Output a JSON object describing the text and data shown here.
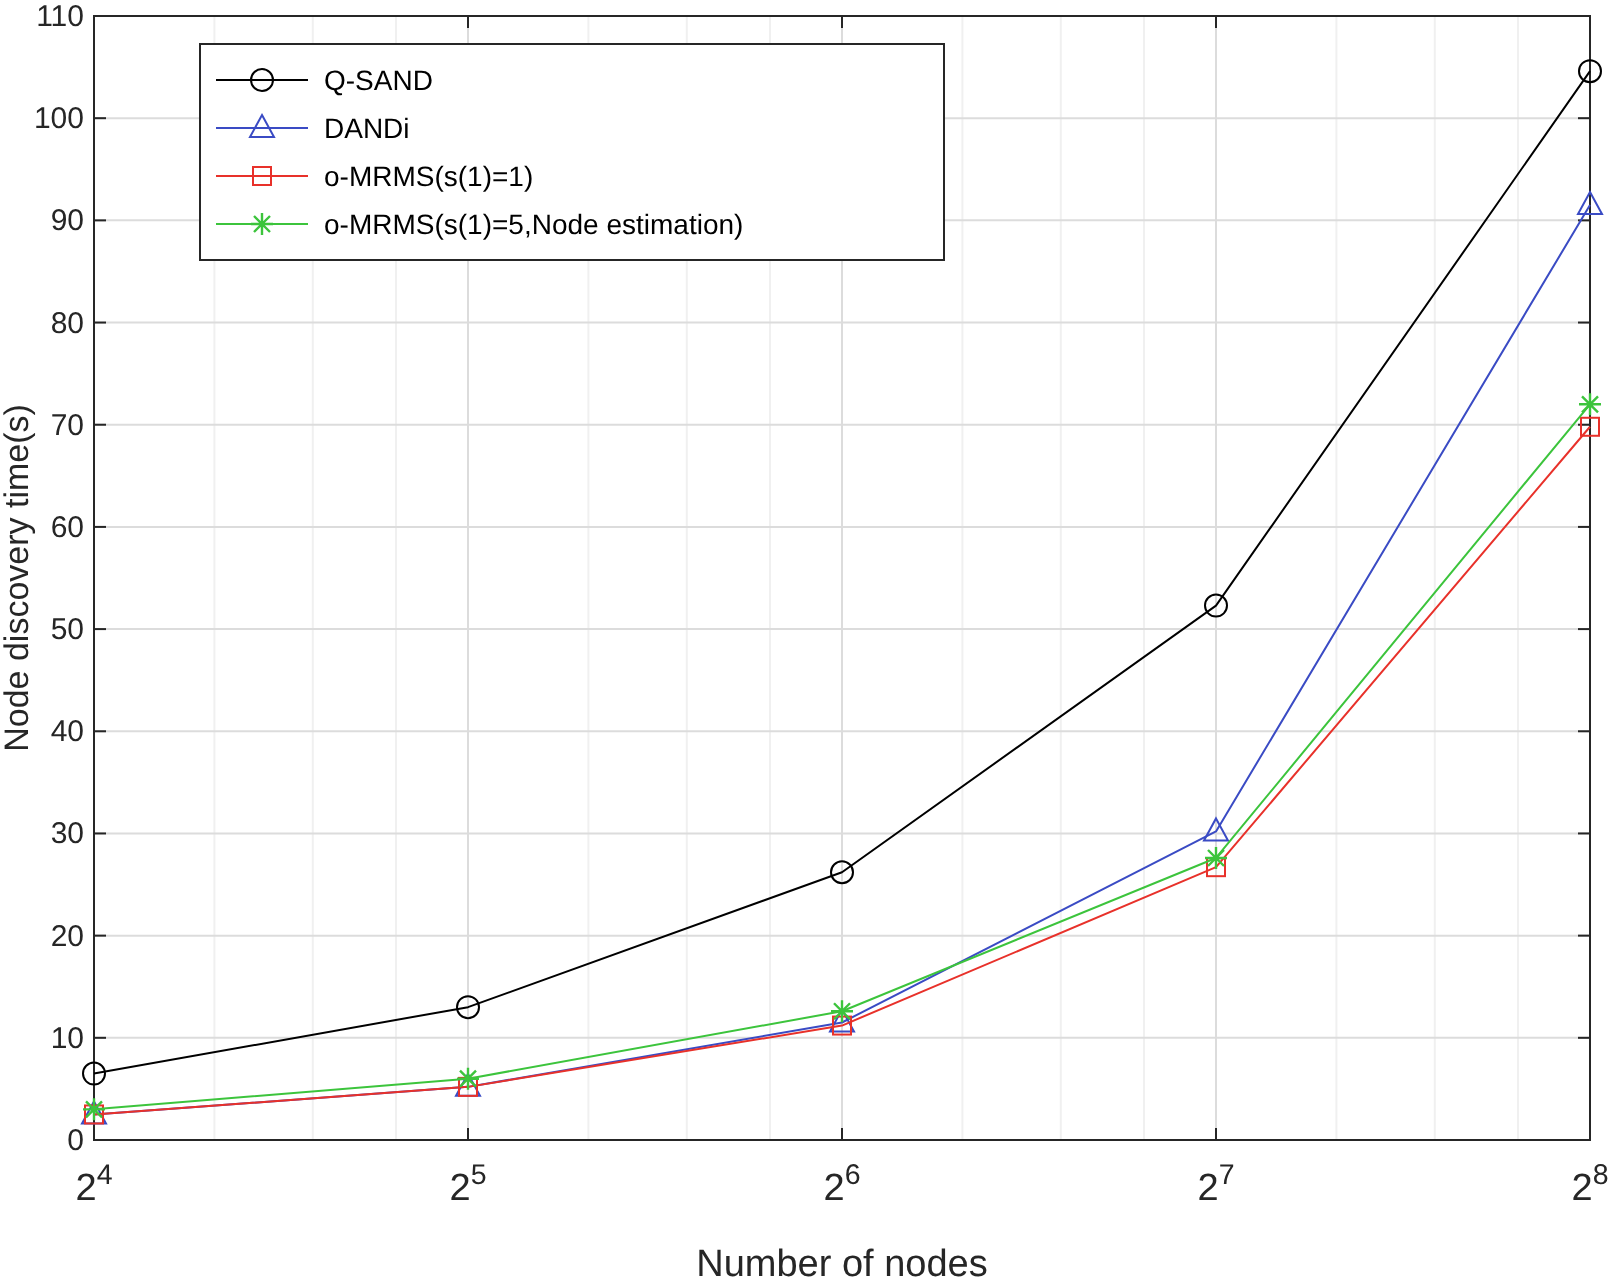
{
  "chart_data": {
    "type": "line",
    "xlabel": "Number of nodes",
    "ylabel": "Node discovery time(s)",
    "x": [
      16,
      32,
      64,
      128,
      256
    ],
    "log": "x",
    "xlim": [
      16,
      256
    ],
    "xticks": [
      {
        "value": 16,
        "label": "2$^{4}$"
      },
      {
        "value": 32,
        "label": "2$^{5}$"
      },
      {
        "value": 64,
        "label": "2$^{6}$"
      },
      {
        "value": 128,
        "label": "2$^{7}$"
      },
      {
        "value": 256,
        "label": "2$^{8}$"
      }
    ],
    "ylim": [
      0,
      110
    ],
    "yticks": [
      0,
      10,
      20,
      30,
      40,
      50,
      60,
      70,
      80,
      90,
      100,
      110
    ],
    "grid": true,
    "legend": "top left",
    "series": [
      {
        "name": "Q-SAND",
        "color": "#000000",
        "marker": "circle",
        "values": [
          6.5,
          13,
          26.2,
          52.3,
          104.6
        ]
      },
      {
        "name": "DANDi",
        "color": "#3a4bc4",
        "marker": "triangle",
        "values": [
          2.5,
          5.2,
          11.5,
          30.2,
          91.5
        ]
      },
      {
        "name": "o-MRMS(s(1)=1)",
        "color": "#e8312a",
        "marker": "square",
        "values": [
          2.5,
          5.2,
          11.2,
          26.7,
          69.8
        ]
      },
      {
        "name": "o-MRMS(s(1)=5,Node estimation)",
        "color": "#3cc43c",
        "marker": "cross",
        "values": [
          3.0,
          6.0,
          12.6,
          27.6,
          72.0
        ]
      }
    ]
  }
}
